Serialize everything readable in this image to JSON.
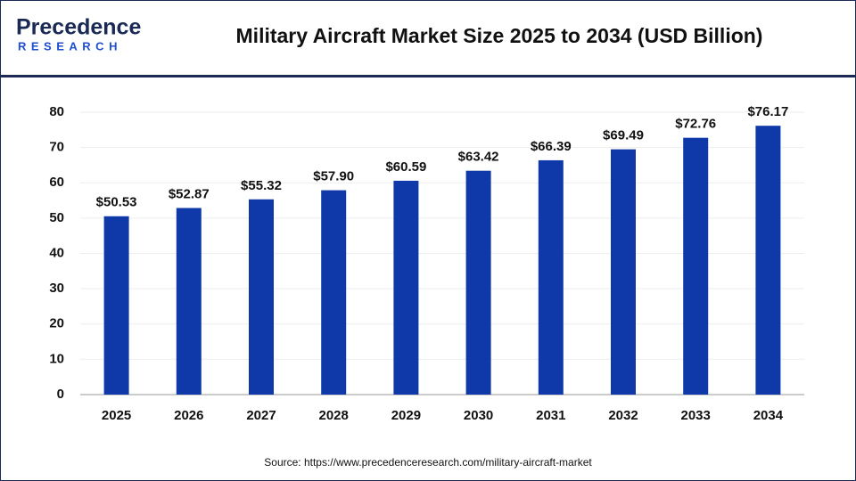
{
  "logo": {
    "name": "Precedence",
    "tagline": "RESEARCH"
  },
  "chart_data": {
    "type": "bar",
    "title": "Military Aircraft Market Size 2025 to 2034 (USD Billion)",
    "categories": [
      "2025",
      "2026",
      "2027",
      "2028",
      "2029",
      "2030",
      "2031",
      "2032",
      "2033",
      "2034"
    ],
    "values": [
      50.53,
      52.87,
      55.32,
      57.9,
      60.59,
      63.42,
      66.39,
      69.49,
      72.76,
      76.17
    ],
    "value_labels": [
      "$50.53",
      "$52.87",
      "$55.32",
      "$57.90",
      "$60.59",
      "$63.42",
      "$66.39",
      "$69.49",
      "$72.76",
      "$76.17"
    ],
    "color": "#0f39a9",
    "ylim": [
      0,
      80
    ],
    "yticks": [
      0,
      10,
      20,
      30,
      40,
      50,
      60,
      70,
      80
    ],
    "grid": true,
    "source": "Source: https://www.precedenceresearch.com/military-aircraft-market"
  }
}
